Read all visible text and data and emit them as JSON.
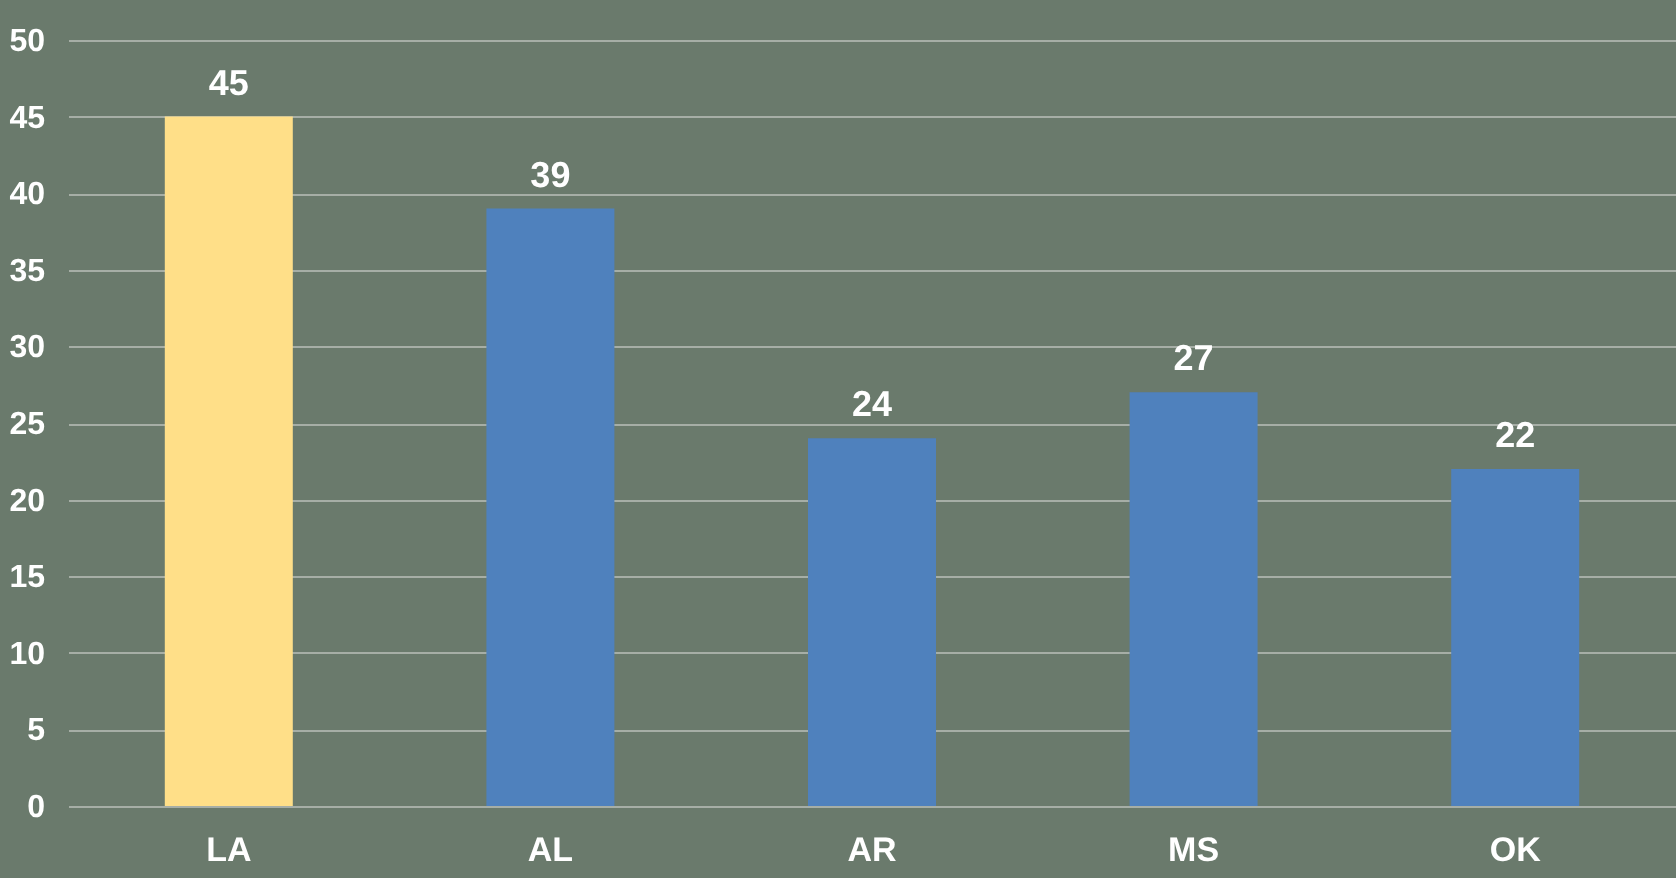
{
  "chart_data": {
    "type": "bar",
    "categories": [
      "LA",
      "AL",
      "AR",
      "MS",
      "OK"
    ],
    "values": [
      45,
      39,
      24,
      27,
      22
    ],
    "colors": [
      "#ffdf88",
      "#4f81bd",
      "#4f81bd",
      "#4f81bd",
      "#4f81bd"
    ],
    "ylim": [
      0,
      50
    ],
    "yticks": [
      0,
      5,
      10,
      15,
      20,
      25,
      30,
      35,
      40,
      45,
      50
    ],
    "grid": "y",
    "data_labels": true
  }
}
